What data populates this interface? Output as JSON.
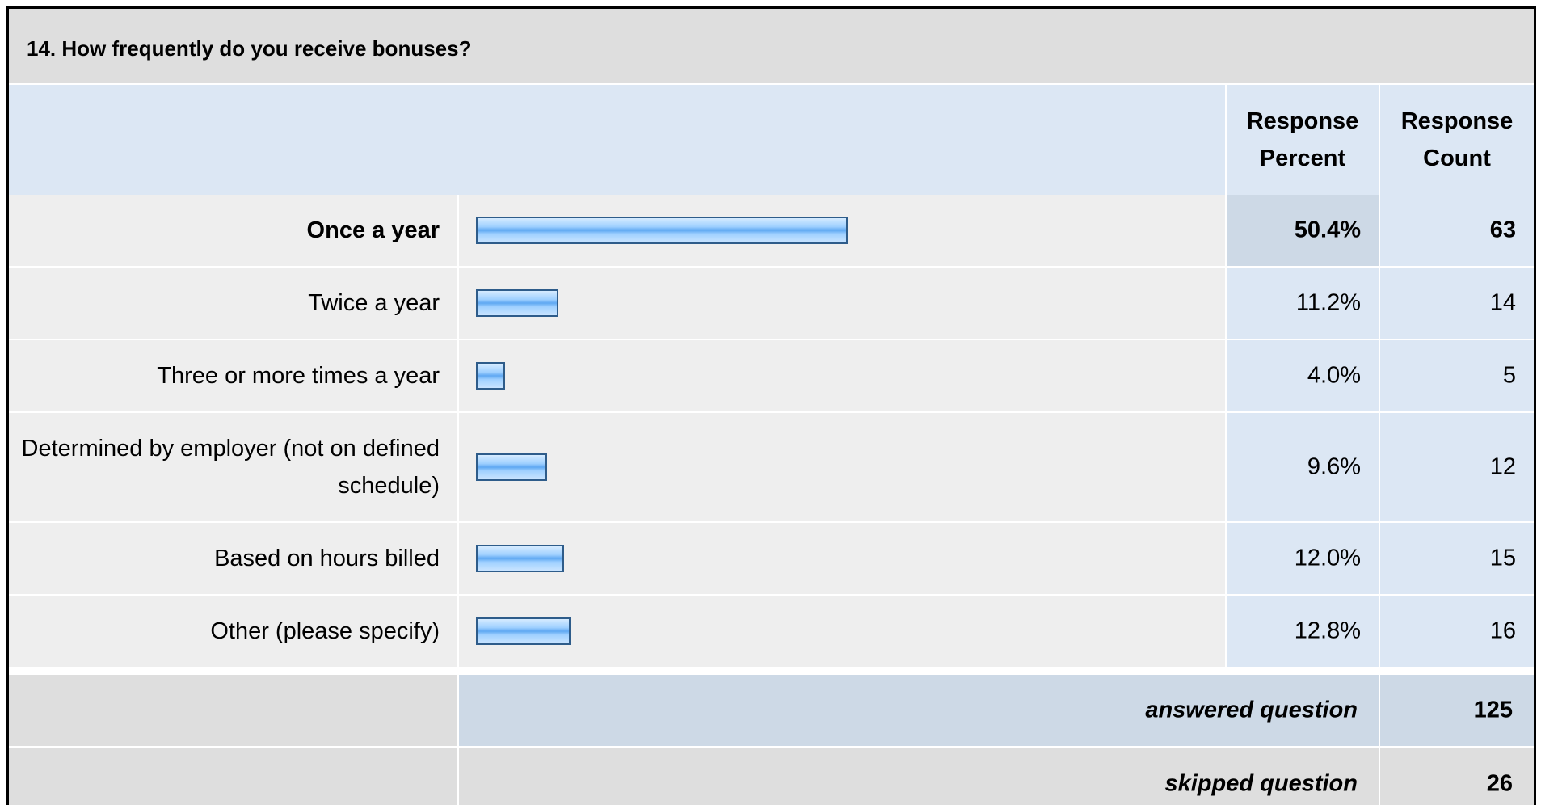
{
  "question_title": "14. How frequently do you receive bonuses?",
  "columns": {
    "response_percent": "Response Percent",
    "response_count": "Response Count"
  },
  "colors": {
    "header_bg": "#dedede",
    "column_header_bg": "#dce7f4",
    "bar_fill": "#7fbff5",
    "bar_border": "#2e5c8a",
    "answered_bg": "#cdd9e6",
    "skipped_bg": "#dedede"
  },
  "chart_data": {
    "type": "bar",
    "orientation": "horizontal",
    "categories": [
      "Once a year",
      "Twice a year",
      "Three or more times a year",
      "Determined by employer (not on defined schedule)",
      "Based on hours billed",
      "Other (please specify)"
    ],
    "values": [
      50.4,
      11.2,
      4.0,
      9.6,
      12.0,
      12.8
    ],
    "percent_labels": [
      "50.4%",
      "11.2%",
      "4.0%",
      "9.6%",
      "12.0%",
      "12.8%"
    ],
    "counts": [
      "63",
      "14",
      "5",
      "12",
      "15",
      "16"
    ],
    "highlighted_index": 0,
    "xlim": [
      0,
      100
    ]
  },
  "summary": {
    "answered_label": "answered question",
    "answered_value": "125",
    "skipped_label": "skipped question",
    "skipped_value": "26"
  }
}
